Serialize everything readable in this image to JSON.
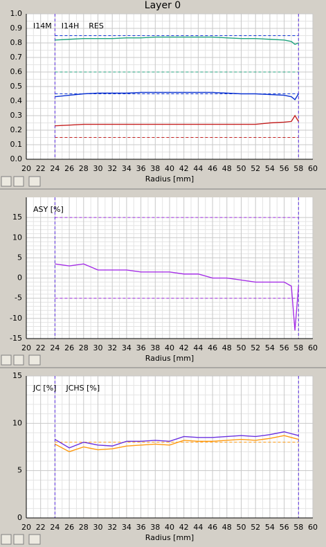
{
  "window_title": "Layer 0",
  "chart_data": [
    {
      "type": "line",
      "xlabel": "Radius [mm]",
      "x": [
        24,
        26,
        28,
        30,
        32,
        34,
        36,
        38,
        40,
        42,
        44,
        46,
        48,
        50,
        52,
        54,
        56,
        57,
        57.5,
        58
      ],
      "series": [
        {
          "name": "I14M",
          "color": "#1fa37e",
          "values": [
            0.82,
            0.825,
            0.83,
            0.83,
            0.83,
            0.835,
            0.835,
            0.84,
            0.84,
            0.84,
            0.84,
            0.84,
            0.835,
            0.83,
            0.83,
            0.825,
            0.82,
            0.81,
            0.79,
            0.8
          ]
        },
        {
          "name": "I14H",
          "color": "#0a32d2",
          "values": [
            0.43,
            0.44,
            0.45,
            0.455,
            0.455,
            0.455,
            0.46,
            0.46,
            0.46,
            0.46,
            0.46,
            0.46,
            0.455,
            0.45,
            0.45,
            0.445,
            0.44,
            0.43,
            0.41,
            0.45
          ]
        },
        {
          "name": "RES",
          "color": "#c42020",
          "values": [
            0.23,
            0.235,
            0.24,
            0.24,
            0.24,
            0.24,
            0.24,
            0.24,
            0.24,
            0.24,
            0.24,
            0.24,
            0.24,
            0.24,
            0.24,
            0.25,
            0.255,
            0.26,
            0.3,
            0.26
          ]
        }
      ],
      "hlines": [
        {
          "value": 0.85,
          "color": "#0a32d2"
        },
        {
          "value": 0.6,
          "color": "#1fa37e"
        },
        {
          "value": 0.45,
          "color": "#0a32d2"
        },
        {
          "value": 0.15,
          "color": "#c42020"
        }
      ],
      "vlines": [
        24,
        58
      ],
      "vline_color": "#5a2ee0",
      "xlim": [
        20,
        60
      ],
      "xticks": [
        20,
        22,
        24,
        26,
        28,
        30,
        32,
        34,
        36,
        38,
        40,
        42,
        44,
        46,
        48,
        50,
        52,
        54,
        56,
        58,
        60
      ],
      "ylim": [
        0,
        1
      ],
      "yticks": [
        {
          "value": 0,
          "label": "0.0"
        },
        0.1,
        0.2,
        0.3,
        0.4,
        0.5,
        0.6,
        0.7,
        0.8,
        0.9,
        {
          "value": 1,
          "label": "1.0"
        }
      ],
      "grid": true
    },
    {
      "type": "line",
      "xlabel": "Radius [mm]",
      "x": [
        24,
        26,
        28,
        30,
        32,
        34,
        36,
        38,
        40,
        42,
        44,
        46,
        48,
        50,
        52,
        54,
        56,
        57,
        57.5,
        58
      ],
      "series": [
        {
          "name": "ASY [%]",
          "color": "#a530e6",
          "values": [
            3.5,
            3,
            3.5,
            2,
            2,
            2,
            1.5,
            1.5,
            1.5,
            1,
            1,
            0,
            0,
            -0.5,
            -1,
            -1,
            -1,
            -2,
            -13,
            -2
          ]
        }
      ],
      "hlines": [
        {
          "value": 15,
          "color": "#a530e6"
        },
        {
          "value": -5,
          "color": "#a530e6"
        }
      ],
      "vlines": [
        24,
        58
      ],
      "vline_color": "#5a2ee0",
      "xlim": [
        20,
        60
      ],
      "xticks": [
        20,
        22,
        24,
        26,
        28,
        30,
        32,
        34,
        36,
        38,
        40,
        42,
        44,
        46,
        48,
        50,
        52,
        54,
        56,
        58,
        60
      ],
      "ylim": [
        -15,
        20
      ],
      "yticks": [
        -15,
        -10,
        -5,
        0,
        5,
        10,
        15
      ],
      "grid": true
    },
    {
      "type": "line",
      "xlabel": "Radius [mm]",
      "x": [
        24,
        26,
        28,
        30,
        32,
        34,
        36,
        38,
        40,
        42,
        44,
        46,
        48,
        50,
        52,
        54,
        56,
        57,
        57.5,
        58
      ],
      "series": [
        {
          "name": "JC [%]",
          "color": "#ff9a10",
          "values": [
            7.8,
            7,
            7.5,
            7.2,
            7.3,
            7.6,
            7.7,
            7.8,
            7.7,
            8.2,
            8.1,
            8.1,
            8.2,
            8.3,
            8.2,
            8.4,
            8.7,
            8.5,
            8.4,
            8.3
          ]
        },
        {
          "name": "JCHS [%]",
          "color": "#6a30e0",
          "values": [
            8.3,
            7.4,
            8,
            7.7,
            7.6,
            8.1,
            8.1,
            8.2,
            8.1,
            8.6,
            8.5,
            8.5,
            8.6,
            8.7,
            8.6,
            8.8,
            9.1,
            8.9,
            8.8,
            8.7
          ]
        }
      ],
      "hlines": [
        {
          "value": 8,
          "color": "#ff9a10"
        }
      ],
      "vlines": [
        24,
        58
      ],
      "vline_color": "#5a2ee0",
      "xlim": [
        20,
        60
      ],
      "xticks": [
        20,
        22,
        24,
        26,
        28,
        30,
        32,
        34,
        36,
        38,
        40,
        42,
        44,
        46,
        48,
        50,
        52,
        54,
        56,
        58,
        60
      ],
      "ylim": [
        0,
        15
      ],
      "yticks": [
        0,
        5,
        10,
        15
      ],
      "grid": true
    }
  ]
}
